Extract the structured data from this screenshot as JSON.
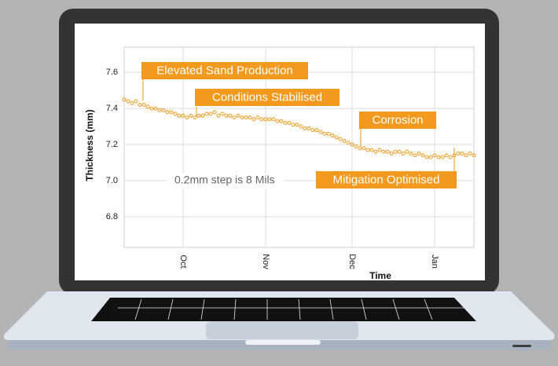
{
  "chart_data": {
    "type": "scatter",
    "y_label": "Thickness (mm)",
    "x_label": "Time",
    "note": "0.2mm step is 8 Mils",
    "annotations": [
      "Elevated Sand Production",
      "Conditions Stabilised",
      "Corrosion",
      "Mitigation Optimised"
    ],
    "annotation_color": "#f39a1e",
    "color": "#f39a1e",
    "grid": true,
    "xlim": [
      0,
      89
    ],
    "xticks": [
      {
        "value": 15,
        "label": "Oct"
      },
      {
        "value": 36,
        "label": "Nov"
      },
      {
        "value": 58,
        "label": "Dec"
      },
      {
        "value": 79,
        "label": "Jan"
      }
    ],
    "ylim": [
      6.63,
      7.74
    ],
    "yticks": [
      6.8,
      {
        "value": 7,
        "label": "7.0"
      },
      7.2,
      7.4,
      7.6
    ],
    "values": [
      7.45,
      7.44,
      7.43,
      7.44,
      7.42,
      7.42,
      7.41,
      7.4,
      7.4,
      7.39,
      7.39,
      7.38,
      7.38,
      7.37,
      7.36,
      7.36,
      7.35,
      7.36,
      7.35,
      7.36,
      7.36,
      7.37,
      7.37,
      7.38,
      7.36,
      7.37,
      7.36,
      7.36,
      7.35,
      7.36,
      7.35,
      7.35,
      7.35,
      7.34,
      7.35,
      7.34,
      7.34,
      7.34,
      7.34,
      7.33,
      7.33,
      7.32,
      7.32,
      7.31,
      7.31,
      7.3,
      7.29,
      7.29,
      7.28,
      7.28,
      7.27,
      7.26,
      7.26,
      7.25,
      7.24,
      7.23,
      7.22,
      7.21,
      7.2,
      7.19,
      7.18,
      7.18,
      7.17,
      7.17,
      7.16,
      7.17,
      7.16,
      7.16,
      7.15,
      7.16,
      7.16,
      7.15,
      7.16,
      7.15,
      7.14,
      7.15,
      7.14,
      7.13,
      7.13,
      7.14,
      7.13,
      7.13,
      7.14,
      7.13,
      7.14,
      7.15,
      7.15,
      7.14,
      7.15,
      7.14
    ]
  }
}
